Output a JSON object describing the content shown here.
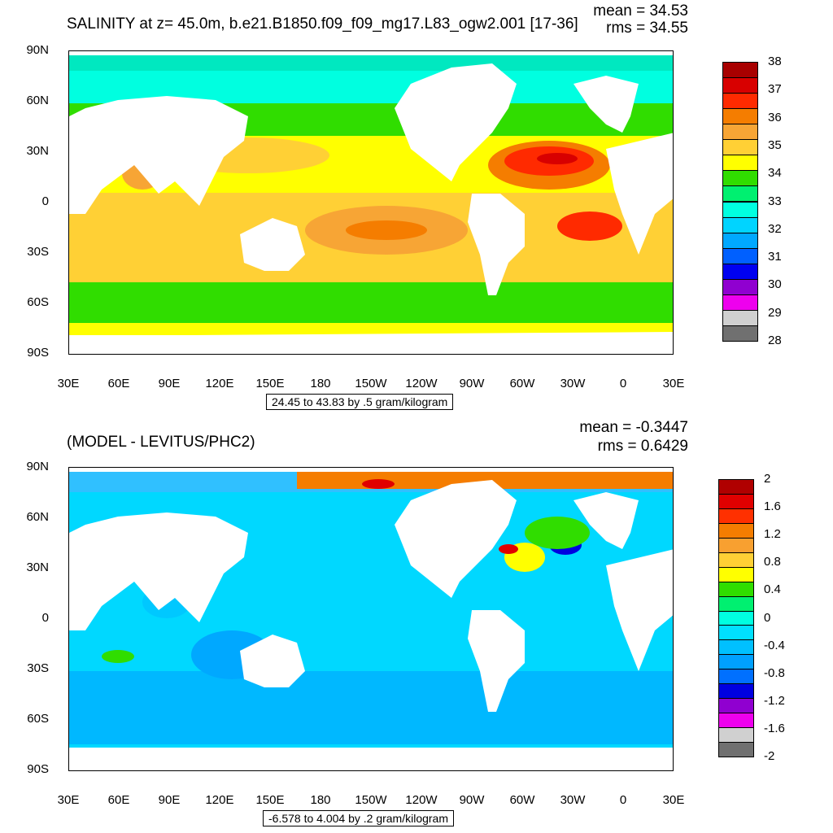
{
  "panels": [
    {
      "title": "SALINITY at z=  45.0m, b.e21.B1850.f09_f09_mg17.L83_ogw2.001 [17-36]",
      "mean": "mean = 34.53",
      "rms": "rms = 34.55",
      "range": "24.45 to 43.83 by .5 gram/kilogram",
      "lat_labels": [
        "90N",
        "60N",
        "30N",
        "0",
        "30S",
        "60S",
        "90S"
      ],
      "lon_labels": [
        "30E",
        "60E",
        "90E",
        "120E",
        "150E",
        "180",
        "150W",
        "120W",
        "90W",
        "60W",
        "30W",
        "0",
        "30E"
      ],
      "colorbar": {
        "labels": [
          "38",
          "37",
          "36",
          "35",
          "34",
          "33",
          "32",
          "31",
          "30",
          "29",
          "28"
        ],
        "colors": [
          "#a80000",
          "#d80000",
          "#ff2a00",
          "#f57d00",
          "#f7a535",
          "#ffd035",
          "#ffff00",
          "#30dd00",
          "#00f070",
          "#00ffe0",
          "#00d4ff",
          "#00a8ff",
          "#0060ff",
          "#0000f0",
          "#9000d0",
          "#ee00ee",
          "#d0d0d0",
          "#707070"
        ]
      }
    },
    {
      "title": "(MODEL - LEVITUS/PHC2)",
      "mean": "mean = -0.3447",
      "rms": "rms = 0.6429",
      "range": "-6.578 to 4.004 by .2 gram/kilogram",
      "lat_labels": [
        "90N",
        "60N",
        "30N",
        "0",
        "30S",
        "60S",
        "90S"
      ],
      "lon_labels": [
        "30E",
        "60E",
        "90E",
        "120E",
        "150E",
        "180",
        "150W",
        "120W",
        "90W",
        "60W",
        "30W",
        "0",
        "30E"
      ],
      "colorbar": {
        "labels": [
          "2",
          "1.6",
          "1.2",
          "0.8",
          "0.4",
          "0",
          "-0.4",
          "-0.8",
          "-1.2",
          "-1.6",
          "-2"
        ],
        "colors": [
          "#b00000",
          "#e00000",
          "#ff3000",
          "#f57d00",
          "#f8a030",
          "#ffd035",
          "#ffff00",
          "#30dd00",
          "#00f070",
          "#00ffe0",
          "#00e0ff",
          "#00c0ff",
          "#00a0ff",
          "#0070ff",
          "#0000e0",
          "#9000d0",
          "#ee00ee",
          "#d0d0d0",
          "#707070"
        ]
      }
    }
  ],
  "palette": {
    "top_ocean": "#ffd035",
    "bottom_ocean": "#00d8ff",
    "land": "#ffffff"
  }
}
